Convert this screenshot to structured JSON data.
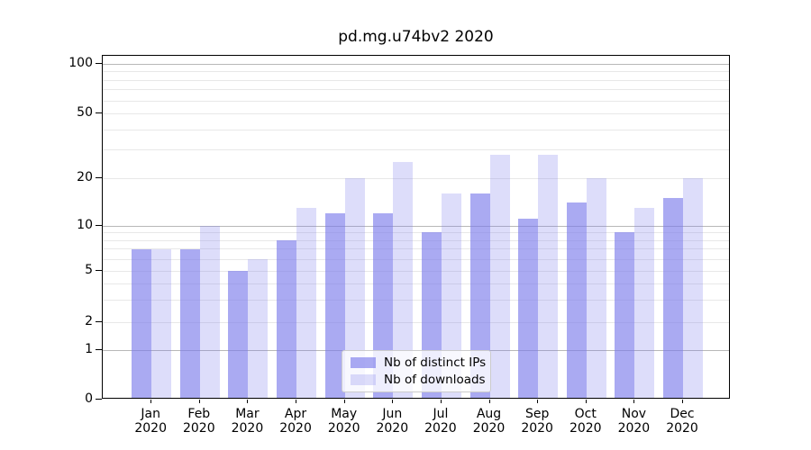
{
  "title": "pd.mg.u74bv2 2020",
  "legend": {
    "items": [
      {
        "label": "Nb of distinct IPs",
        "color": "rgba(120,120,235,0.63)"
      },
      {
        "label": "Nb of downloads",
        "color": "rgba(120,120,235,0.25)"
      }
    ]
  },
  "y_axis": {
    "labeled_ticks": [
      "0",
      "1",
      "2",
      "5",
      "10",
      "20",
      "50",
      "100"
    ],
    "major_gridlines": [
      1,
      10,
      100
    ],
    "minor_gridlines": [
      2,
      3,
      4,
      5,
      6,
      7,
      8,
      9,
      20,
      30,
      40,
      50,
      60,
      70,
      80,
      90
    ]
  },
  "x_axis": {
    "months": [
      "Jan",
      "Feb",
      "Mar",
      "Apr",
      "May",
      "Jun",
      "Jul",
      "Aug",
      "Sep",
      "Oct",
      "Nov",
      "Dec"
    ],
    "year": "2020"
  },
  "colors": {
    "bar_ips": "rgba(120,120,235,0.63)",
    "bar_downloads": "rgba(120,120,235,0.25)",
    "bar_ips_solid_hex": "#aaaaf2",
    "bar_downloads_solid_hex": "#ddddfa",
    "grid_major": "#b8b8b8",
    "grid_minor": "#e8e8e8",
    "axis": "#000000"
  },
  "chart_data": {
    "type": "bar",
    "title": "pd.mg.u74bv2 2020",
    "categories": [
      "Jan 2020",
      "Feb 2020",
      "Mar 2020",
      "Apr 2020",
      "May 2020",
      "Jun 2020",
      "Jul 2020",
      "Aug 2020",
      "Sep 2020",
      "Oct 2020",
      "Nov 2020",
      "Dec 2020"
    ],
    "series": [
      {
        "name": "Nb of distinct IPs",
        "values": [
          7,
          7,
          5,
          8,
          12,
          12,
          9,
          16,
          11,
          14,
          9,
          15
        ]
      },
      {
        "name": "Nb of downloads",
        "values": [
          7,
          10,
          6,
          13,
          20,
          25,
          16,
          28,
          28,
          20,
          13,
          20
        ]
      }
    ],
    "xlabel": "",
    "ylabel": "",
    "ylim": [
      0,
      100
    ],
    "yscale": "log-like with linear 0-1 segment; labeled ticks 0,1,2,5,10,20,50,100",
    "grid": true,
    "legend_position": "lower center"
  }
}
